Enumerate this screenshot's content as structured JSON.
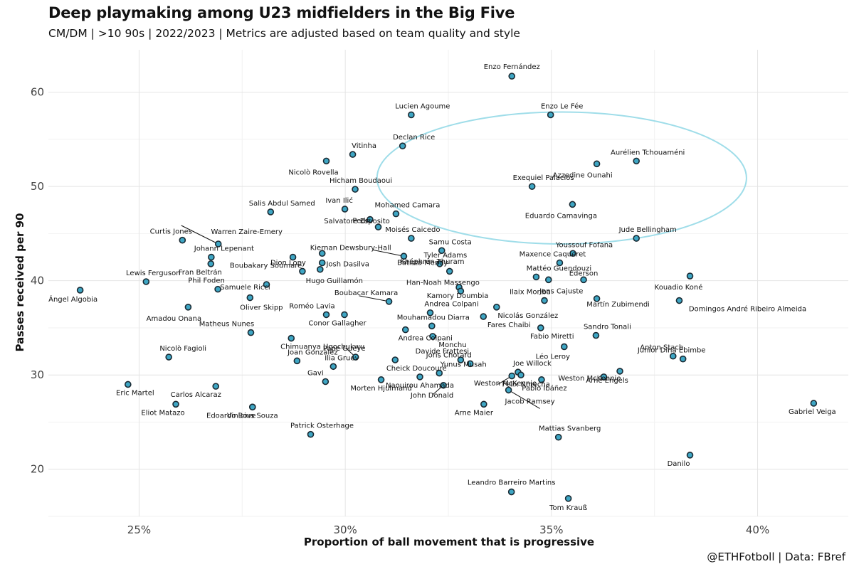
{
  "header": {
    "title": "Deep playmaking among U23 midfielders in the Big Five",
    "subtitle": "CM/DM | >10 90s | 2022/2023 | Metrics are adjusted based on team quality and style"
  },
  "footer": {
    "credit": "@ETHFotboll | Data: FBref"
  },
  "colors": {
    "point_fill": "#3ea6c4",
    "point_stroke": "#1a2a33",
    "highlight_ellipse": "#9fdde9",
    "grid": "#e4e4e4"
  },
  "chart_data": {
    "type": "scatter",
    "xlabel": "Proportion of ball movement that is progressive",
    "ylabel": "Passes received per 90",
    "xlim": [
      0.228,
      0.422
    ],
    "ylim": [
      15.0,
      64.5
    ],
    "x_ticks": [
      0.25,
      0.3,
      0.35,
      0.4
    ],
    "x_tick_labels": [
      "25%",
      "30%",
      "35%",
      "40%"
    ],
    "y_ticks": [
      20,
      30,
      40,
      50,
      60
    ],
    "y_tick_labels": [
      "20",
      "30",
      "40",
      "50",
      "60"
    ],
    "grid": true,
    "highlight_ellipse": {
      "center": [
        0.3525,
        50.9
      ],
      "semi_axis_x": 0.0448,
      "semi_axis_y": 7.0
    },
    "points": [
      {
        "name": "Enzo Fernández",
        "x": 0.3404,
        "y": 61.7
      },
      {
        "name": "Lucien Agoume",
        "x": 0.316,
        "y": 57.6
      },
      {
        "name": "Enzo Le Fée",
        "x": 0.3498,
        "y": 57.6
      },
      {
        "name": "Declan Rice",
        "x": 0.3139,
        "y": 54.3
      },
      {
        "name": "Vitinha",
        "x": 0.3018,
        "y": 53.4
      },
      {
        "name": "Nicolò Rovella",
        "x": 0.2954,
        "y": 52.7
      },
      {
        "name": "Aurélien Tchouaméni",
        "x": 0.3706,
        "y": 52.7
      },
      {
        "name": "Azzedine Ounahi",
        "x": 0.361,
        "y": 52.4
      },
      {
        "name": "Exequiel Palacios",
        "x": 0.3453,
        "y": 50.0
      },
      {
        "name": "Hicham Boudaoui",
        "x": 0.3024,
        "y": 49.7
      },
      {
        "name": "Eduardo Camavinga",
        "x": 0.3551,
        "y": 48.1
      },
      {
        "name": "Ivan Ilić",
        "x": 0.2999,
        "y": 47.6
      },
      {
        "name": "Salis Abdul Samed",
        "x": 0.2819,
        "y": 47.3
      },
      {
        "name": "Mohamed Camara",
        "x": 0.3123,
        "y": 47.1
      },
      {
        "name": "Pedri",
        "x": 0.306,
        "y": 46.5
      },
      {
        "name": "Salvatore Esposito",
        "x": 0.308,
        "y": 45.7
      },
      {
        "name": "Moisés Caicedo",
        "x": 0.316,
        "y": 44.5
      },
      {
        "name": "Jude Bellingham",
        "x": 0.3706,
        "y": 44.5
      },
      {
        "name": "Curtis Jones",
        "x": 0.2605,
        "y": 44.3
      },
      {
        "name": "Warren Zaire-Emery",
        "x": 0.2692,
        "y": 43.9
      },
      {
        "name": "Samu Costa",
        "x": 0.3234,
        "y": 43.2
      },
      {
        "name": "Kiernan Dewsbury-Hall",
        "x": 0.2944,
        "y": 42.9
      },
      {
        "name": "Youssouf Fofana",
        "x": 0.3552,
        "y": 42.9
      },
      {
        "name": "Khéphren Thuram",
        "x": 0.3142,
        "y": 42.6
      },
      {
        "name": "Johann Lepenant",
        "x": 0.2675,
        "y": 42.5
      },
      {
        "name": "Boubakary Soumaré",
        "x": 0.2873,
        "y": 42.5
      },
      {
        "name": "Josh Dasilva",
        "x": 0.2944,
        "y": 41.9
      },
      {
        "name": "Maxence Caqueret",
        "x": 0.352,
        "y": 41.9
      },
      {
        "name": "Fran Beltrán",
        "x": 0.2674,
        "y": 41.8
      },
      {
        "name": "Tyler Adams",
        "x": 0.3229,
        "y": 41.8
      },
      {
        "name": "Hugo Guillamón",
        "x": 0.2939,
        "y": 41.2
      },
      {
        "name": "Dion Lopy",
        "x": 0.2896,
        "y": 41.0
      },
      {
        "name": "Batista Mendy",
        "x": 0.3253,
        "y": 41.0
      },
      {
        "name": "Kouadio Koné",
        "x": 0.3836,
        "y": 40.5
      },
      {
        "name": "Mattéo Guendouzi",
        "x": 0.3463,
        "y": 40.4
      },
      {
        "name": "Jens Cajuste",
        "x": 0.3493,
        "y": 40.1
      },
      {
        "name": "Lewis Ferguson",
        "x": 0.2517,
        "y": 39.9
      },
      {
        "name": "Samuele Ricci",
        "x": 0.2809,
        "y": 39.6
      },
      {
        "name": "Ederson",
        "x": 0.3578,
        "y": 40.1
      },
      {
        "name": "Phil Foden",
        "x": 0.2691,
        "y": 39.1
      },
      {
        "name": "Ángel Algobia",
        "x": 0.2357,
        "y": 39.0
      },
      {
        "name": "Kamory Doumbia",
        "x": 0.3276,
        "y": 39.3
      },
      {
        "name": "Han-Noah Massengo",
        "x": 0.328,
        "y": 38.9
      },
      {
        "name": "Oliver Skipp",
        "x": 0.2769,
        "y": 38.2
      },
      {
        "name": "Martín Zubimendi",
        "x": 0.361,
        "y": 38.1
      },
      {
        "name": "Ilaix Moriba",
        "x": 0.3483,
        "y": 37.9
      },
      {
        "name": "Domingos André Ribeiro Almeida",
        "x": 0.381,
        "y": 37.9
      },
      {
        "name": "Boubacar Kamara",
        "x": 0.3106,
        "y": 37.8
      },
      {
        "name": "Nicolás González",
        "x": 0.3367,
        "y": 37.2
      },
      {
        "name": "Amadou Onana",
        "x": 0.2619,
        "y": 37.2
      },
      {
        "name": "Andrea Colpani",
        "x": 0.3206,
        "y": 36.6
      },
      {
        "name": "Roméo Lavia",
        "x": 0.2954,
        "y": 36.4
      },
      {
        "name": "Conor Gallagher",
        "x": 0.2998,
        "y": 36.4
      },
      {
        "name": "Fares Chaibi",
        "x": 0.3335,
        "y": 36.2
      },
      {
        "name": "Mouhamadou Diarra",
        "x": 0.321,
        "y": 35.2
      },
      {
        "name": "Fabio Miretti",
        "x": 0.3474,
        "y": 35.0
      },
      {
        "name": "Andrea Colpani",
        "x": 0.3146,
        "y": 34.8
      },
      {
        "name": "Matheus Nunes",
        "x": 0.2771,
        "y": 34.5
      },
      {
        "name": "Sandro Tonali",
        "x": 0.3608,
        "y": 34.2
      },
      {
        "name": "Monchu",
        "x": 0.3212,
        "y": 34.1
      },
      {
        "name": "Chimuanya Ugochukwu",
        "x": 0.2869,
        "y": 33.9
      },
      {
        "name": "Léo Leroy",
        "x": 0.3531,
        "y": 33.0
      },
      {
        "name": "Anton Stach",
        "x": 0.3795,
        "y": 32.0
      },
      {
        "name": "Nicolò Fagioli",
        "x": 0.2572,
        "y": 31.9
      },
      {
        "name": "Pape Gueye",
        "x": 0.3025,
        "y": 31.9
      },
      {
        "name": "Junior Dina Ebimbe",
        "x": 0.3819,
        "y": 31.7
      },
      {
        "name": "Cheick Doucouré",
        "x": 0.3121,
        "y": 31.6
      },
      {
        "name": "Davide Frattesi",
        "x": 0.328,
        "y": 31.6
      },
      {
        "name": "Joan Gonzàlez",
        "x": 0.2883,
        "y": 31.5
      },
      {
        "name": "Joris Chotard",
        "x": 0.3303,
        "y": 31.2
      },
      {
        "name": "Ilia Gruev",
        "x": 0.2971,
        "y": 30.9
      },
      {
        "name": "Arne Engels",
        "x": 0.3666,
        "y": 30.4
      },
      {
        "name": "Joe Willock",
        "x": 0.3419,
        "y": 30.3
      },
      {
        "name": "Yunus Musah",
        "x": 0.3228,
        "y": 30.2
      },
      {
        "name": "Gavi",
        "x": 0.2952,
        "y": 29.3
      },
      {
        "name": "Morten Hjulmand",
        "x": 0.3087,
        "y": 29.5
      },
      {
        "name": "Weston McKennie",
        "x": 0.3426,
        "y": 30.0
      },
      {
        "name": "Weston McKennie",
        "x": 0.3627,
        "y": 29.8
      },
      {
        "name": "Pablo Ibáñez",
        "x": 0.3476,
        "y": 29.5
      },
      {
        "name": "Eric Martel",
        "x": 0.2473,
        "y": 29.0
      },
      {
        "name": "Carlos Alcaraz",
        "x": 0.2686,
        "y": 28.8
      },
      {
        "name": "Naouirou Ahamada",
        "x": 0.3181,
        "y": 29.8
      },
      {
        "name": "John Donald",
        "x": 0.3238,
        "y": 28.9
      },
      {
        "name": "Felix Nmecha",
        "x": 0.3404,
        "y": 29.9
      },
      {
        "name": "Jacob Ramsey",
        "x": 0.3396,
        "y": 28.4
      },
      {
        "name": "Gabriel Veiga",
        "x": 0.4136,
        "y": 27.0
      },
      {
        "name": "Eliot Matazo",
        "x": 0.2589,
        "y": 26.9
      },
      {
        "name": "Arne Maier",
        "x": 0.3336,
        "y": 26.9
      },
      {
        "name": "Edoardo Bove",
        "x": 0.2775,
        "y": 26.6
      },
      {
        "name": "Vinicius Souza",
        "x": 0.2775,
        "y": 26.6
      },
      {
        "name": "Patrick Osterhage",
        "x": 0.2916,
        "y": 23.7
      },
      {
        "name": "Mattias Svanberg",
        "x": 0.3517,
        "y": 23.4
      },
      {
        "name": "Danilo",
        "x": 0.3836,
        "y": 21.5
      },
      {
        "name": "Leandro Barreiro Martins",
        "x": 0.3403,
        "y": 17.6
      },
      {
        "name": "Tom Krauß",
        "x": 0.3541,
        "y": 16.9
      }
    ]
  }
}
